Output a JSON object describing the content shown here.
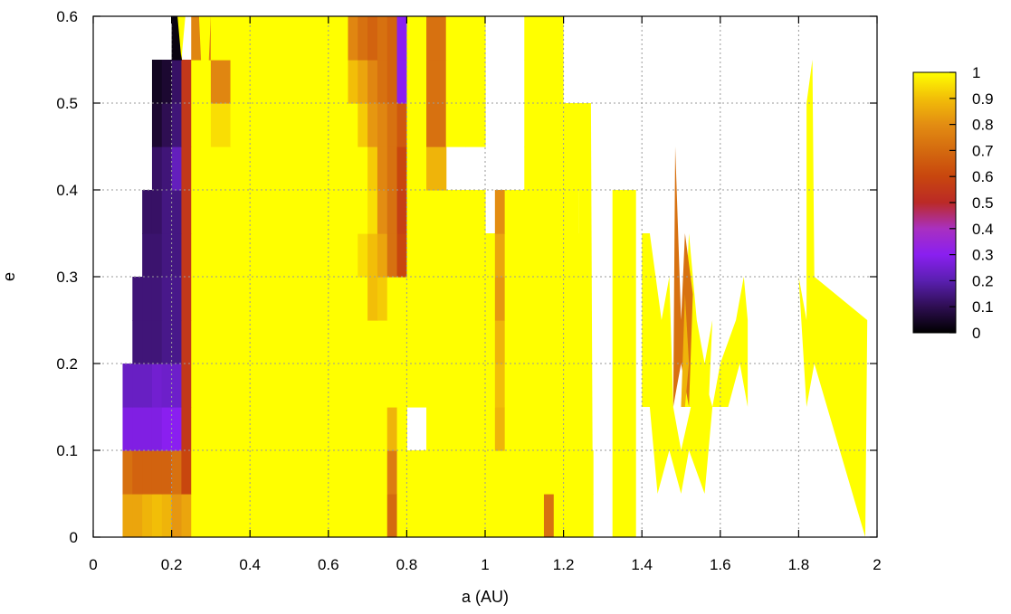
{
  "chart_data": {
    "type": "heatmap",
    "title": "",
    "xlabel": "a (AU)",
    "ylabel": "e",
    "xlim": [
      0,
      2
    ],
    "ylim": [
      0,
      0.6
    ],
    "grid": true,
    "x_ticks": [
      {
        "value": 0,
        "label": "0"
      },
      {
        "value": 0.2,
        "label": "0.2"
      },
      {
        "value": 0.4,
        "label": "0.4"
      },
      {
        "value": 0.6,
        "label": "0.6"
      },
      {
        "value": 0.8,
        "label": "0.8"
      },
      {
        "value": 1,
        "label": "1"
      },
      {
        "value": 1.2,
        "label": "1.2"
      },
      {
        "value": 1.4,
        "label": "1.4"
      },
      {
        "value": 1.6,
        "label": "1.6"
      },
      {
        "value": 1.8,
        "label": "1.8"
      },
      {
        "value": 2,
        "label": "2"
      }
    ],
    "y_ticks": [
      {
        "value": 0,
        "label": "0"
      },
      {
        "value": 0.1,
        "label": "0.1"
      },
      {
        "value": 0.2,
        "label": "0.2"
      },
      {
        "value": 0.3,
        "label": "0.3"
      },
      {
        "value": 0.4,
        "label": "0.4"
      },
      {
        "value": 0.5,
        "label": "0.5"
      },
      {
        "value": 0.6,
        "label": "0.6"
      }
    ],
    "colorbar": {
      "range": [
        0,
        1
      ],
      "placement": "right",
      "ticks": [
        {
          "value": 0,
          "label": "0"
        },
        {
          "value": 0.1,
          "label": "0.1"
        },
        {
          "value": 0.2,
          "label": "0.2"
        },
        {
          "value": 0.3,
          "label": "0.3"
        },
        {
          "value": 0.4,
          "label": "0.4"
        },
        {
          "value": 0.5,
          "label": "0.5"
        },
        {
          "value": 0.6,
          "label": "0.6"
        },
        {
          "value": 0.7,
          "label": "0.7"
        },
        {
          "value": 0.8,
          "label": "0.8"
        },
        {
          "value": 0.9,
          "label": "0.9"
        },
        {
          "value": 1,
          "label": "1"
        }
      ],
      "palette": [
        {
          "v": 0.0,
          "color": "#000000"
        },
        {
          "v": 0.1,
          "color": "#2e0e52"
        },
        {
          "v": 0.2,
          "color": "#5a1fb0"
        },
        {
          "v": 0.3,
          "color": "#8a1ff0"
        },
        {
          "v": 0.4,
          "color": "#a930c0"
        },
        {
          "v": 0.5,
          "color": "#bb2a26"
        },
        {
          "v": 0.6,
          "color": "#c8460e"
        },
        {
          "v": 0.7,
          "color": "#d46a0f"
        },
        {
          "v": 0.8,
          "color": "#e38d12"
        },
        {
          "v": 0.9,
          "color": "#f2be08"
        },
        {
          "v": 1.0,
          "color": "#ffff00"
        }
      ]
    },
    "x_edges": [
      0.075,
      0.1,
      0.125,
      0.15,
      0.175,
      0.2,
      0.225,
      0.25,
      0.3,
      0.35,
      0.4,
      0.45,
      0.5,
      0.55,
      0.6,
      0.65,
      0.675,
      0.7,
      0.725,
      0.75,
      0.775,
      0.8,
      0.85,
      0.9,
      0.95,
      1.0,
      1.025,
      1.05,
      1.1,
      1.125,
      1.15,
      1.175,
      1.2,
      1.225,
      1.25,
      1.275
    ],
    "y_edges": [
      0,
      0.05,
      0.1,
      0.15,
      0.2,
      0.25,
      0.3,
      0.35,
      0.4,
      0.45,
      0.5,
      0.55,
      0.6
    ],
    "cells": [
      [
        0.85,
        0.85,
        0.88,
        0.9,
        0.88,
        0.82,
        0.85,
        1,
        1,
        1,
        1,
        1,
        1,
        1,
        1,
        1,
        1,
        1,
        1,
        0.7,
        1,
        1,
        1,
        1,
        1,
        1,
        1,
        1,
        1,
        1,
        0.72,
        1,
        1,
        1,
        1
      ],
      [
        0.72,
        0.68,
        0.68,
        0.68,
        0.68,
        0.72,
        0.6,
        1,
        1,
        1,
        1,
        1,
        1,
        1,
        1,
        1,
        1,
        1,
        1,
        0.75,
        1,
        1,
        1,
        1,
        1,
        1,
        1,
        1,
        1,
        1,
        1,
        1,
        1,
        1,
        1
      ],
      [
        0.28,
        0.28,
        0.28,
        0.28,
        0.3,
        0.3,
        0.55,
        1,
        1,
        1,
        1,
        1,
        1,
        1,
        1,
        1,
        1,
        1,
        1,
        0.88,
        1,
        null,
        1,
        1,
        1,
        1,
        0.88,
        1,
        1,
        1,
        1,
        1,
        1,
        1,
        null
      ],
      [
        0.23,
        0.23,
        0.23,
        0.25,
        0.24,
        0.24,
        0.55,
        1,
        1,
        1,
        1,
        1,
        1,
        1,
        1,
        1,
        1,
        1,
        1,
        1,
        1,
        1,
        1,
        1,
        1,
        1,
        0.9,
        1,
        1,
        1,
        1,
        1,
        1,
        1,
        null
      ],
      [
        null,
        0.14,
        0.14,
        0.14,
        0.16,
        0.16,
        0.55,
        1,
        1,
        1,
        1,
        1,
        1,
        1,
        1,
        1,
        1,
        1,
        1,
        1,
        1,
        1,
        1,
        1,
        1,
        1,
        0.88,
        1,
        1,
        1,
        1,
        1,
        1,
        1,
        null
      ],
      [
        null,
        0.14,
        0.14,
        0.14,
        0.16,
        0.16,
        0.55,
        1,
        1,
        1,
        1,
        1,
        1,
        1,
        1,
        1,
        1,
        0.9,
        0.92,
        1,
        1,
        1,
        1,
        1,
        1,
        1,
        0.82,
        1,
        1,
        1,
        1,
        1,
        1,
        1,
        null
      ],
      [
        null,
        null,
        0.13,
        0.13,
        0.15,
        0.15,
        0.55,
        1,
        1,
        1,
        1,
        1,
        1,
        1,
        1,
        1,
        0.95,
        0.9,
        0.85,
        0.72,
        0.6,
        1,
        1,
        1,
        1,
        1,
        0.85,
        1,
        1,
        1,
        1,
        1,
        null,
        1,
        null
      ],
      [
        null,
        null,
        0.12,
        0.12,
        0.15,
        0.15,
        0.55,
        1,
        1,
        1,
        1,
        1,
        1,
        1,
        1,
        1,
        1,
        0.95,
        0.8,
        0.72,
        0.58,
        1,
        1,
        1,
        1,
        null,
        0.8,
        1,
        1,
        1,
        1,
        1,
        null,
        null,
        null
      ],
      [
        null,
        null,
        null,
        0.12,
        0.14,
        0.22,
        0.55,
        1,
        1,
        1,
        1,
        1,
        1,
        1,
        1,
        1,
        1,
        0.92,
        0.78,
        0.72,
        0.6,
        1,
        0.88,
        null,
        null,
        null,
        null,
        null,
        1,
        1,
        1,
        1,
        null,
        1,
        null
      ],
      [
        null,
        null,
        null,
        0.06,
        0.1,
        0.14,
        0.55,
        1,
        0.95,
        1,
        1,
        1,
        1,
        1,
        1,
        1,
        0.92,
        0.82,
        0.78,
        0.72,
        0.65,
        1,
        0.72,
        1,
        1,
        null,
        null,
        null,
        1,
        1,
        1,
        null,
        null,
        1,
        null
      ],
      [
        null,
        null,
        null,
        0.04,
        0.06,
        0.12,
        0.55,
        1,
        0.78,
        1,
        1,
        1,
        1,
        1,
        1,
        0.9,
        0.85,
        0.78,
        0.72,
        0.68,
        0.3,
        1,
        0.72,
        1,
        1,
        null,
        null,
        null,
        1,
        1,
        1,
        null,
        null,
        null,
        null
      ],
      [
        null,
        null,
        null,
        null,
        null,
        0.02,
        null,
        0.78,
        1,
        1,
        1,
        1,
        1,
        1,
        1,
        0.78,
        0.72,
        0.68,
        0.72,
        0.68,
        0.3,
        1,
        0.72,
        1,
        1,
        null,
        null,
        null,
        1,
        1,
        1,
        null,
        null,
        null,
        null
      ]
    ],
    "regions": [
      {
        "value": 1,
        "points": [
          [
            0.27,
            0.6
          ],
          [
            0.285,
            0.45
          ],
          [
            0.3,
            0.6
          ]
        ]
      },
      {
        "value": 1,
        "points": [
          [
            0.215,
            0.6
          ],
          [
            0.225,
            0.55
          ],
          [
            0.235,
            0.6
          ]
        ]
      },
      {
        "value": 1,
        "points": [
          [
            0.5,
            0.6
          ],
          [
            0.52,
            0.52
          ],
          [
            0.545,
            0.6
          ]
        ]
      },
      {
        "value": 1,
        "points": [
          [
            0.55,
            0.6
          ],
          [
            0.565,
            0.5
          ],
          [
            0.59,
            0.6
          ]
        ]
      },
      {
        "value": 1,
        "points": [
          [
            1.125,
            0.6
          ],
          [
            1.15,
            0.45
          ],
          [
            1.2,
            0.45
          ],
          [
            1.2,
            0.6
          ]
        ]
      },
      {
        "value": 1,
        "points": [
          [
            1.15,
            0.45
          ],
          [
            1.15,
            0.53
          ],
          [
            1.17,
            0.47
          ],
          [
            1.2,
            0.45
          ]
        ]
      },
      {
        "value": 1,
        "points": [
          [
            1.2,
            0.3
          ],
          [
            1.2,
            0.5
          ],
          [
            1.24,
            0.5
          ],
          [
            1.24,
            0.3
          ]
        ]
      },
      {
        "value": 1,
        "points": [
          [
            1.24,
            0.3
          ],
          [
            1.24,
            0.5
          ],
          [
            1.27,
            0.5
          ],
          [
            1.275,
            0.0
          ],
          [
            1.24,
            0.0
          ]
        ]
      },
      {
        "value": 1,
        "points": [
          [
            1.325,
            0.0
          ],
          [
            1.325,
            0.4
          ],
          [
            1.385,
            0.4
          ],
          [
            1.385,
            0.0
          ]
        ]
      },
      {
        "value": 1,
        "points": [
          [
            1.4,
            0.15
          ],
          [
            1.4,
            0.35
          ],
          [
            1.42,
            0.35
          ],
          [
            1.45,
            0.25
          ],
          [
            1.47,
            0.3
          ],
          [
            1.48,
            0.15
          ],
          [
            1.5,
            0.1
          ],
          [
            1.55,
            0.2
          ],
          [
            1.58,
            0.15
          ],
          [
            1.56,
            0.05
          ],
          [
            1.52,
            0.1
          ],
          [
            1.5,
            0.05
          ],
          [
            1.47,
            0.1
          ],
          [
            1.44,
            0.05
          ],
          [
            1.42,
            0.15
          ]
        ]
      },
      {
        "value": 1,
        "points": [
          [
            1.5,
            0.15
          ],
          [
            1.52,
            0.35
          ],
          [
            1.54,
            0.25
          ],
          [
            1.56,
            0.2
          ],
          [
            1.58,
            0.25
          ],
          [
            1.57,
            0.15
          ]
        ]
      },
      {
        "value": 0.72,
        "points": [
          [
            1.48,
            0.15
          ],
          [
            1.485,
            0.45
          ],
          [
            1.5,
            0.25
          ],
          [
            1.51,
            0.35
          ],
          [
            1.53,
            0.28
          ],
          [
            1.52,
            0.15
          ],
          [
            1.5,
            0.2
          ]
        ]
      },
      {
        "value": 0.88,
        "points": [
          [
            1.5,
            0.15
          ],
          [
            1.51,
            0.28
          ],
          [
            1.52,
            0.2
          ],
          [
            1.51,
            0.15
          ]
        ]
      },
      {
        "value": 1,
        "points": [
          [
            1.58,
            0.15
          ],
          [
            1.6,
            0.2
          ],
          [
            1.64,
            0.25
          ],
          [
            1.66,
            0.3
          ],
          [
            1.67,
            0.25
          ],
          [
            1.67,
            0.15
          ],
          [
            1.65,
            0.2
          ],
          [
            1.62,
            0.15
          ]
        ]
      },
      {
        "value": 1,
        "points": [
          [
            1.8,
            0.3
          ],
          [
            1.82,
            0.15
          ],
          [
            1.84,
            0.2
          ],
          [
            1.97,
            0.0
          ],
          [
            1.975,
            0.25
          ],
          [
            1.84,
            0.3
          ],
          [
            1.835,
            0.55
          ],
          [
            1.82,
            0.5
          ],
          [
            1.82,
            0.25
          ]
        ]
      },
      {
        "value": 1,
        "points": [
          [
            0.755,
            0.15
          ],
          [
            0.755,
            0.2
          ],
          [
            0.78,
            0.2
          ],
          [
            0.78,
            0.15
          ]
        ]
      }
    ]
  }
}
